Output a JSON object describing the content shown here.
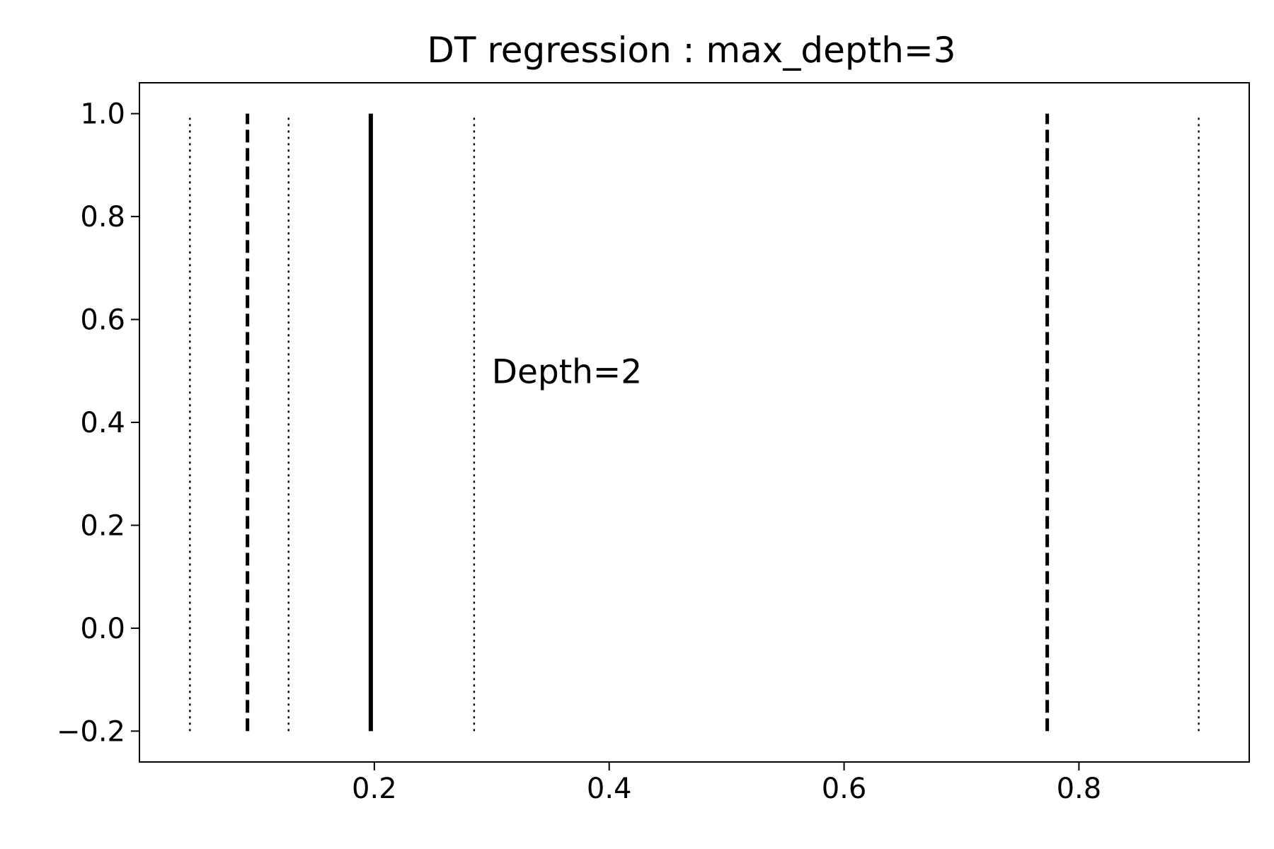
{
  "chart_data": {
    "type": "line",
    "title": "DT regression : max_depth=3",
    "xlabel": "",
    "ylabel": "",
    "xlim": [
      0.0,
      0.945
    ],
    "ylim": [
      -0.26,
      1.06
    ],
    "x_ticks": [
      0.2,
      0.4,
      0.6,
      0.8
    ],
    "x_tick_labels": [
      "0.2",
      "0.4",
      "0.6",
      "0.8"
    ],
    "y_ticks": [
      -0.2,
      0.0,
      0.2,
      0.4,
      0.6,
      0.8,
      1.0
    ],
    "y_tick_labels": [
      "−0.2",
      "0.0",
      "0.2",
      "0.4",
      "0.6",
      "0.8",
      "1.0"
    ],
    "grid": false,
    "series": [
      {
        "style": "solid",
        "color": "#000000",
        "x": [
          0.197,
          0.197
        ],
        "y": [
          -0.2,
          1.0
        ]
      },
      {
        "style": "dashed",
        "color": "#000000",
        "x": [
          0.092,
          0.092
        ],
        "y": [
          -0.2,
          1.0
        ]
      },
      {
        "style": "dashed",
        "color": "#000000",
        "x": [
          0.773,
          0.773
        ],
        "y": [
          -0.2,
          1.0
        ]
      },
      {
        "style": "dotted",
        "color": "#000000",
        "x": [
          0.043,
          0.043
        ],
        "y": [
          -0.2,
          1.0
        ]
      },
      {
        "style": "dotted",
        "color": "#000000",
        "x": [
          0.127,
          0.127
        ],
        "y": [
          -0.2,
          1.0
        ]
      },
      {
        "style": "dotted",
        "color": "#000000",
        "x": [
          0.285,
          0.285
        ],
        "y": [
          -0.2,
          1.0
        ]
      },
      {
        "style": "dotted",
        "color": "#000000",
        "x": [
          0.902,
          0.902
        ],
        "y": [
          -0.2,
          1.0
        ]
      }
    ],
    "annotations": [
      {
        "text": "Depth=2",
        "x": 0.3,
        "y": 0.5
      }
    ]
  }
}
